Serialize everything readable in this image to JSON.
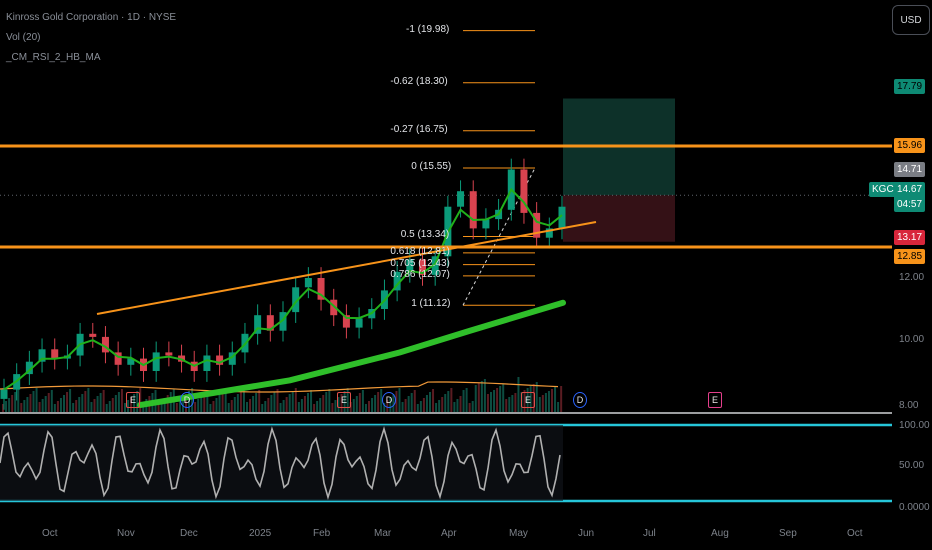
{
  "header": {
    "symbol_title": "Kinross Gold Corporation · 1D · NYSE",
    "indicator_1": "Vol (20)",
    "indicator_2": "_CM_RSI_2_HB_MA"
  },
  "currency_button": "USD",
  "colors": {
    "bull": "#0b9b7a",
    "bear": "#d8434f",
    "ema": "#21b11b",
    "ma200": "#2fbf2a",
    "level_line": "#f7931a",
    "rsi_bands": "#26c6da",
    "rsi_line": "#b0b0b0",
    "target_zone": "#0f3a30",
    "stop_zone": "#3a1318"
  },
  "price_tags": {
    "target": "17.79",
    "resistance": "15.96",
    "prev_close": "14.71",
    "ticker": "KGC",
    "last": "14.67",
    "countdown": "04:57",
    "stop": "13.17",
    "support": "12.85"
  },
  "fib_levels": [
    {
      "label": "-1 (19.98)",
      "value": 19.98
    },
    {
      "label": "-0.62 (18.30)",
      "value": 18.3
    },
    {
      "label": "-0.27 (16.75)",
      "value": 16.75
    },
    {
      "label": "0 (15.55)",
      "value": 15.55
    },
    {
      "label": "0.5 (13.34)",
      "value": 13.34
    },
    {
      "label": "0.618 (12.81)",
      "value": 12.81
    },
    {
      "label": "0.705 (12.43)",
      "value": 12.43
    },
    {
      "label": "0.786 (12.07)",
      "value": 12.07
    },
    {
      "label": "1 (11.12)",
      "value": 11.12
    }
  ],
  "price_axis": {
    "ticks": [
      "12.00",
      "10.00",
      "8.00"
    ],
    "rsi_ticks": [
      "100.00",
      "50.00",
      "0.0000"
    ]
  },
  "time_axis": [
    "Oct",
    "Nov",
    "Dec",
    "2025",
    "Feb",
    "Mar",
    "Apr",
    "May",
    "Jun",
    "Jul",
    "Aug",
    "Sep",
    "Oct"
  ],
  "events": [
    {
      "glyph": "E",
      "type": "earnings"
    },
    {
      "glyph": "D",
      "type": "dividend"
    },
    {
      "glyph": "E",
      "type": "earnings"
    },
    {
      "glyph": "D",
      "type": "dividend"
    },
    {
      "glyph": "E",
      "type": "earnings"
    },
    {
      "glyph": "D",
      "type": "dividend"
    },
    {
      "glyph": "E",
      "type": "earnings-upcoming"
    }
  ],
  "chart_data": {
    "type": "candlestick",
    "y_range": [
      7.9,
      20.2
    ],
    "series": [
      {
        "name": "KGC",
        "x_start": "2024-09-13",
        "x_end": "2025-05-23",
        "close_approx": [
          8.4,
          8.9,
          9.3,
          9.7,
          9.4,
          9.5,
          10.2,
          10.1,
          9.6,
          9.2,
          9.4,
          9.0,
          9.6,
          9.5,
          9.3,
          9.0,
          9.5,
          9.2,
          9.6,
          10.2,
          10.8,
          10.3,
          10.9,
          11.7,
          12.0,
          11.3,
          10.8,
          10.4,
          10.7,
          11.0,
          11.6,
          12.2,
          12.6,
          12.1,
          12.7,
          14.3,
          14.8,
          13.6,
          13.9,
          14.2,
          15.5,
          14.1,
          13.3,
          13.6,
          14.3
        ]
      },
      {
        "name": "EMA",
        "ref": "green smoothed line following price"
      },
      {
        "name": "MA 200",
        "points": [
          [
            "2024-11-01",
            7.9
          ],
          [
            "2025-01-10",
            8.7
          ],
          [
            "2025-03-01",
            9.6
          ],
          [
            "2025-04-15",
            10.3
          ],
          [
            "2025-05-23",
            11.2
          ]
        ]
      }
    ],
    "annotations": {
      "support_line": 12.85,
      "resistance_line": 15.96,
      "trendline_from": [
        "2024-10-25",
        11.2
      ],
      "trendline_to": [
        "2025-06-01",
        13.5
      ],
      "long_position": {
        "entry": 14.67,
        "target": 17.79,
        "stop": 13.17
      }
    },
    "rsi": {
      "range": [
        0,
        100
      ],
      "upper_band": 95,
      "lower_band": 5
    }
  }
}
